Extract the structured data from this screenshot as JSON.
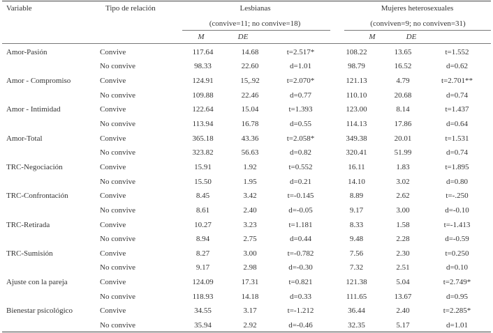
{
  "header": {
    "variable": "Variable",
    "tipo_relacion": "Tipo de relación",
    "group1": "Lesbianas",
    "group1_n": "(convive=11; no convive=18)",
    "group2": "Mujeres heterosexuales",
    "group2_n": "(conviven=9; no conviven=31)",
    "m": "M",
    "de": "DE"
  },
  "rows": [
    {
      "variable": "Amor-Pasión",
      "rel": "Convive",
      "m1": "117.64",
      "de1": "14.68",
      "s1": "t=2.517*",
      "m2": "108.22",
      "de2": "13.65",
      "s2": "t=1.552"
    },
    {
      "variable": "",
      "rel": "No convive",
      "m1": "98.33",
      "de1": "22.60",
      "s1": "d=1.01",
      "m2": "98.79",
      "de2": "16.52",
      "s2": "d=0.62"
    },
    {
      "variable": "Amor - Compromiso",
      "rel": "Convive",
      "m1": "124.91",
      "de1": "15,.92",
      "s1": "t=2.070*",
      "m2": "121.13",
      "de2": "4.79",
      "s2": "t=2.701**"
    },
    {
      "variable": "",
      "rel": "No convive",
      "m1": "109.88",
      "de1": "22.46",
      "s1": "d=0.77",
      "m2": "110.10",
      "de2": "20.68",
      "s2": "d=0.74"
    },
    {
      "variable": "Amor - Intimidad",
      "rel": "Convive",
      "m1": "122.64",
      "de1": "15.04",
      "s1": "t=1.393",
      "m2": "123.00",
      "de2": "8.14",
      "s2": "t=1.437"
    },
    {
      "variable": "",
      "rel": "No convive",
      "m1": "113.94",
      "de1": "16.78",
      "s1": "d=0.55",
      "m2": "114.13",
      "de2": "17.86",
      "s2": "d=0.64"
    },
    {
      "variable": "Amor-Total",
      "rel": "Convive",
      "m1": "365.18",
      "de1": "43.36",
      "s1": "t=2.058*",
      "m2": "349.38",
      "de2": "20.01",
      "s2": "t=1.531"
    },
    {
      "variable": "",
      "rel": "No convive",
      "m1": "323.82",
      "de1": "56.63",
      "s1": "d=0.82",
      "m2": "320.41",
      "de2": "51.99",
      "s2": "d=0.74"
    },
    {
      "variable": "TRC-Negociación",
      "rel": "Convive",
      "m1": "15.91",
      "de1": "1.92",
      "s1": "t=0.552",
      "m2": "16.11",
      "de2": "1.83",
      "s2": "t=1.895"
    },
    {
      "variable": "",
      "rel": "No convive",
      "m1": "15.50",
      "de1": "1.95",
      "s1": "d=0.21",
      "m2": "14.10",
      "de2": "3.02",
      "s2": "d=0.80"
    },
    {
      "variable": "TRC-Confrontación",
      "rel": "Convive",
      "m1": "8.45",
      "de1": "3.42",
      "s1": "t=-0.145",
      "m2": "8.89",
      "de2": "2.62",
      "s2": "t=-.250"
    },
    {
      "variable": "",
      "rel": "No convive",
      "m1": "8.61",
      "de1": "2.40",
      "s1": "d=-0.05",
      "m2": "9.17",
      "de2": "3.00",
      "s2": "d=-0.10"
    },
    {
      "variable": "TRC-Retirada",
      "rel": "Convive",
      "m1": "10.27",
      "de1": "3.23",
      "s1": "t=1.181",
      "m2": "8.33",
      "de2": "1.58",
      "s2": "t=-1.413"
    },
    {
      "variable": "",
      "rel": "No convive",
      "m1": "8.94",
      "de1": "2.75",
      "s1": "d=0.44",
      "m2": "9.48",
      "de2": "2.28",
      "s2": "d=-0.59"
    },
    {
      "variable": "TRC-Sumisión",
      "rel": "Convive",
      "m1": "8.27",
      "de1": "3.00",
      "s1": "t=-0.782",
      "m2": "7.56",
      "de2": "2.30",
      "s2": "t=0.250"
    },
    {
      "variable": "",
      "rel": "No convive",
      "m1": "9.17",
      "de1": "2.98",
      "s1": "d=-0.30",
      "m2": "7.32",
      "de2": "2.51",
      "s2": "d=0.10"
    },
    {
      "variable": "Ajuste con la pareja",
      "rel": "Convive",
      "m1": "124.09",
      "de1": "17.31",
      "s1": "t=0.821",
      "m2": "121.38",
      "de2": "5.04",
      "s2": "t=2.749*"
    },
    {
      "variable": "",
      "rel": "No convive",
      "m1": "118.93",
      "de1": "14.18",
      "s1": "d=0.33",
      "m2": "111.65",
      "de2": "13.67",
      "s2": "d=0.95"
    },
    {
      "variable": "Bienestar psicológico",
      "rel": "Convive",
      "m1": "34.55",
      "de1": "3.17",
      "s1": "t=-1.212",
      "m2": "36.44",
      "de2": "2.40",
      "s2": "t=2.285*"
    },
    {
      "variable": "",
      "rel": "No convive",
      "m1": "35.94",
      "de1": "2.92",
      "s1": "d=-0.46",
      "m2": "32.35",
      "de2": "5.17",
      "s2": "d=1.01"
    }
  ]
}
